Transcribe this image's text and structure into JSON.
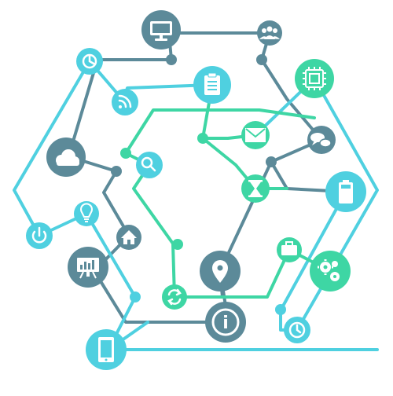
{
  "colors": {
    "slate": "#5c8a99",
    "cyan": "#4fd0e0",
    "mint": "#3ed6a4",
    "white": "#ffffff"
  },
  "icons": [
    "monitor-icon",
    "users-icon",
    "pie-chart-icon",
    "rss-icon",
    "clipboard-icon",
    "cpu-chip-icon",
    "envelope-icon",
    "chat-bubbles-icon",
    "cloud-icon",
    "search-icon",
    "hourglass-icon",
    "battery-icon",
    "lightbulb-icon",
    "power-icon",
    "home-icon",
    "presentation-icon",
    "map-pin-icon",
    "briefcase-icon",
    "gears-icon",
    "refresh-icon",
    "info-icon",
    "smartphone-icon",
    "clock-icon"
  ],
  "labels": {
    "info": "i"
  }
}
